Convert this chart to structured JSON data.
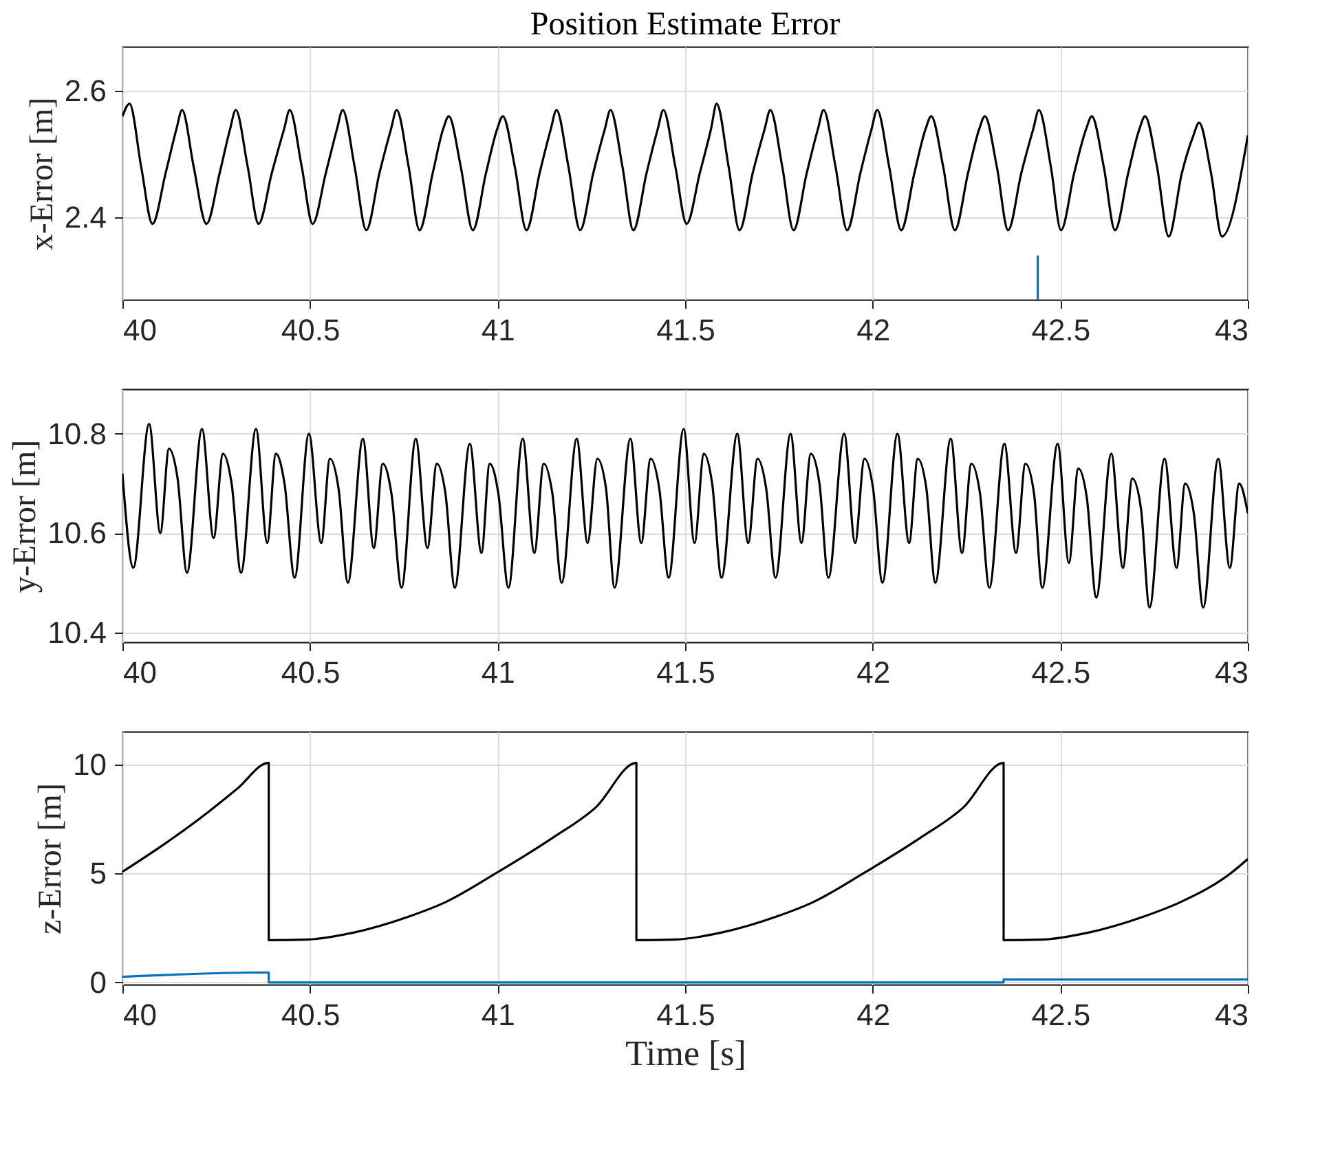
{
  "chart_data": [
    {
      "type": "line",
      "title": "Position Estimate Error",
      "ylabel": "x-Error [m]",
      "xlim": [
        40,
        43
      ],
      "xticks": [
        40,
        40.5,
        41,
        41.5,
        42,
        42.5,
        43
      ],
      "ylim": [
        2.27,
        2.67
      ],
      "yticks": [
        2.4,
        2.6
      ],
      "grid": true,
      "series": [
        {
          "color": "#000000",
          "x": [
            40.0,
            40.019,
            40.05,
            40.08,
            40.115,
            40.144,
            40.159,
            40.19,
            40.224,
            40.259,
            40.287,
            40.302,
            40.334,
            40.363,
            40.398,
            40.431,
            40.446,
            40.478,
            40.507,
            40.542,
            40.572,
            40.587,
            40.619,
            40.65,
            40.685,
            40.716,
            40.731,
            40.763,
            40.792,
            40.827,
            40.855,
            40.87,
            40.902,
            40.934,
            40.969,
            40.999,
            41.014,
            41.046,
            41.077,
            41.112,
            41.142,
            41.157,
            41.189,
            41.22,
            41.255,
            41.286,
            41.301,
            41.333,
            41.362,
            41.397,
            41.427,
            41.442,
            41.474,
            41.504,
            41.539,
            41.569,
            41.584,
            41.616,
            41.645,
            41.68,
            41.712,
            41.727,
            41.759,
            41.789,
            41.824,
            41.854,
            41.869,
            41.901,
            41.932,
            41.967,
            41.997,
            42.012,
            42.044,
            42.076,
            42.111,
            42.141,
            42.156,
            42.188,
            42.219,
            42.254,
            42.284,
            42.299,
            42.331,
            42.361,
            42.396,
            42.428,
            42.443,
            42.475,
            42.502,
            42.537,
            42.569,
            42.584,
            42.616,
            42.646,
            42.681,
            42.711,
            42.726,
            42.758,
            42.789,
            42.824,
            42.855,
            42.87,
            42.902,
            42.931,
            43.0
          ],
          "values": [
            2.56,
            2.58,
            2.48,
            2.39,
            2.47,
            2.54,
            2.57,
            2.48,
            2.39,
            2.47,
            2.54,
            2.57,
            2.48,
            2.39,
            2.47,
            2.54,
            2.57,
            2.48,
            2.39,
            2.47,
            2.54,
            2.57,
            2.48,
            2.38,
            2.47,
            2.54,
            2.57,
            2.48,
            2.38,
            2.47,
            2.54,
            2.56,
            2.48,
            2.38,
            2.47,
            2.54,
            2.56,
            2.48,
            2.38,
            2.47,
            2.54,
            2.57,
            2.48,
            2.38,
            2.47,
            2.54,
            2.57,
            2.48,
            2.38,
            2.47,
            2.54,
            2.57,
            2.48,
            2.39,
            2.47,
            2.54,
            2.58,
            2.48,
            2.38,
            2.47,
            2.54,
            2.57,
            2.48,
            2.38,
            2.47,
            2.54,
            2.57,
            2.48,
            2.38,
            2.47,
            2.54,
            2.57,
            2.48,
            2.38,
            2.47,
            2.54,
            2.56,
            2.48,
            2.38,
            2.47,
            2.54,
            2.56,
            2.48,
            2.38,
            2.47,
            2.54,
            2.57,
            2.48,
            2.38,
            2.47,
            2.54,
            2.56,
            2.48,
            2.38,
            2.47,
            2.54,
            2.56,
            2.48,
            2.37,
            2.47,
            2.53,
            2.55,
            2.47,
            2.37,
            2.53
          ]
        },
        {
          "color": "#0072bd",
          "x": [
            42.44,
            42.44
          ],
          "values": [
            2.27,
            2.34
          ]
        }
      ]
    },
    {
      "type": "line",
      "ylabel": "y-Error [m]",
      "xlim": [
        40,
        43
      ],
      "xticks": [
        40,
        40.5,
        41,
        41.5,
        42,
        42.5,
        43
      ],
      "ylim": [
        10.38,
        10.89
      ],
      "yticks": [
        10.4,
        10.6,
        10.8
      ],
      "grid": true,
      "series": [
        {
          "color": "#000000",
          "x": [
            40.0,
            40.029,
            40.071,
            40.101,
            40.124,
            40.147,
            40.172,
            40.212,
            40.243,
            40.268,
            40.291,
            40.316,
            40.356,
            40.386,
            40.409,
            40.432,
            40.459,
            40.497,
            40.53,
            40.553,
            40.576,
            40.601,
            40.641,
            40.67,
            40.694,
            40.717,
            40.744,
            40.782,
            40.813,
            40.838,
            40.861,
            40.886,
            40.926,
            40.957,
            40.979,
            41.002,
            41.029,
            41.067,
            41.098,
            41.123,
            41.146,
            41.171,
            41.211,
            41.24,
            41.266,
            41.289,
            41.312,
            41.354,
            41.383,
            41.408,
            41.431,
            41.456,
            41.496,
            41.525,
            41.55,
            41.572,
            41.597,
            41.639,
            41.668,
            41.693,
            41.716,
            41.741,
            41.781,
            41.81,
            41.835,
            41.858,
            41.882,
            41.924,
            41.953,
            41.978,
            42.001,
            42.026,
            42.066,
            42.097,
            42.12,
            42.143,
            42.167,
            42.208,
            42.238,
            42.263,
            42.286,
            42.311,
            42.351,
            42.382,
            42.407,
            42.43,
            42.452,
            42.493,
            42.523,
            42.548,
            42.571,
            42.596,
            42.636,
            42.667,
            42.692,
            42.715,
            42.738,
            42.778,
            42.81,
            42.833,
            42.856,
            42.881,
            42.921,
            42.952,
            42.977,
            43.0
          ],
          "values": [
            10.72,
            10.53,
            10.82,
            10.6,
            10.77,
            10.71,
            10.52,
            10.81,
            10.59,
            10.76,
            10.7,
            10.52,
            10.81,
            10.58,
            10.76,
            10.7,
            10.51,
            10.8,
            10.58,
            10.75,
            10.69,
            10.5,
            10.79,
            10.57,
            10.74,
            10.68,
            10.49,
            10.79,
            10.57,
            10.74,
            10.68,
            10.49,
            10.78,
            10.56,
            10.74,
            10.68,
            10.49,
            10.79,
            10.56,
            10.74,
            10.68,
            10.5,
            10.79,
            10.58,
            10.75,
            10.69,
            10.49,
            10.79,
            10.58,
            10.75,
            10.69,
            10.51,
            10.81,
            10.58,
            10.76,
            10.7,
            10.51,
            10.8,
            10.58,
            10.75,
            10.69,
            10.51,
            10.8,
            10.58,
            10.76,
            10.7,
            10.51,
            10.8,
            10.58,
            10.75,
            10.69,
            10.5,
            10.8,
            10.58,
            10.75,
            10.69,
            10.5,
            10.79,
            10.56,
            10.74,
            10.68,
            10.49,
            10.78,
            10.56,
            10.74,
            10.68,
            10.49,
            10.78,
            10.54,
            10.73,
            10.67,
            10.47,
            10.76,
            10.53,
            10.71,
            10.65,
            10.45,
            10.75,
            10.53,
            10.7,
            10.64,
            10.45,
            10.75,
            10.53,
            10.7,
            10.64
          ]
        }
      ]
    },
    {
      "type": "line",
      "ylabel": "z-Error [m]",
      "xlabel": "Time [s]",
      "xlim": [
        40,
        43
      ],
      "xticks": [
        40,
        40.5,
        41,
        41.5,
        42,
        42.5,
        43
      ],
      "ylim": [
        -0.1,
        11.5
      ],
      "yticks": [
        0,
        5,
        10
      ],
      "grid": true,
      "series": [
        {
          "color": "#000000",
          "x": [
            40.0,
            40.115,
            40.23,
            40.306,
            40.39,
            40.39,
            40.497,
            40.612,
            40.765,
            40.861,
            40.995,
            41.148,
            41.262,
            41.37,
            41.37,
            41.477,
            41.592,
            41.745,
            41.841,
            41.975,
            42.128,
            42.242,
            42.349,
            42.349,
            42.456,
            42.571,
            42.724,
            42.82,
            42.954,
            43.0
          ],
          "values": [
            5.07,
            6.38,
            7.83,
            8.88,
            10.07,
            1.94,
            1.97,
            2.27,
            3.03,
            3.68,
            5.0,
            6.64,
            8.03,
            10.07,
            1.94,
            1.97,
            2.27,
            3.03,
            3.68,
            5.0,
            6.64,
            8.03,
            10.07,
            1.94,
            1.97,
            2.27,
            3.03,
            3.68,
            5.0,
            5.66
          ]
        },
        {
          "color": "#0072bd",
          "x": [
            40.0,
            40.39,
            40.39,
            42.349,
            42.349,
            43.0
          ],
          "values": [
            0.26,
            0.46,
            0.0,
            0.0,
            0.13,
            0.13
          ]
        }
      ]
    }
  ]
}
